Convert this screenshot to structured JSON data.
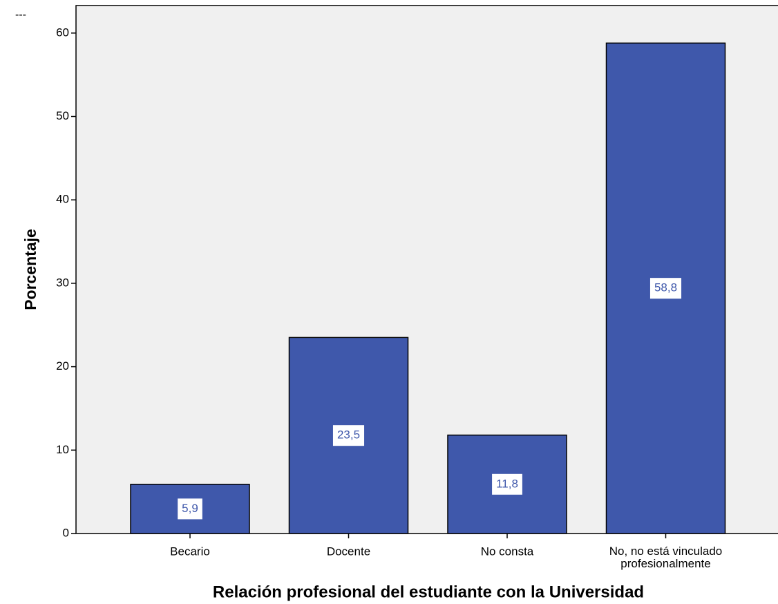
{
  "chart_data": {
    "type": "bar",
    "marker": "---",
    "categories": [
      "Becario",
      "Docente",
      "No consta",
      "No, no está vinculado profesionalmente"
    ],
    "values": [
      5.9,
      23.5,
      11.8,
      58.8
    ],
    "value_labels": [
      "5,9",
      "23,5",
      "11,8",
      "58,8"
    ],
    "color": "#3f58ab",
    "ylim": [
      0,
      63.3
    ],
    "yticks": [
      0,
      10,
      20,
      30,
      40,
      50,
      60
    ],
    "ylabel": "Porcentaje",
    "xlabel": "Relación profesional del estudiante con la Universidad"
  }
}
